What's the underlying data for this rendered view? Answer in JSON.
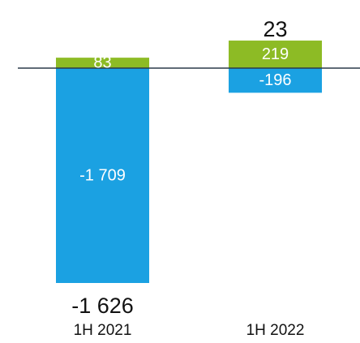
{
  "chart_data": {
    "type": "bar",
    "stacked": true,
    "categories": [
      "1H 2021",
      "1H 2022"
    ],
    "series": [
      {
        "values": [
          83,
          219
        ],
        "labels": [
          "83",
          "219"
        ],
        "color": "#8dbb25"
      },
      {
        "values": [
          -1709,
          -196
        ],
        "labels": [
          "-1 709",
          "-196"
        ],
        "color": "#1ba1e2"
      }
    ],
    "totals": [
      -1626,
      23
    ],
    "total_labels": [
      "-1 626",
      "23"
    ],
    "baseline_color": "#2b3a4a",
    "grid": false,
    "legend": "none"
  }
}
